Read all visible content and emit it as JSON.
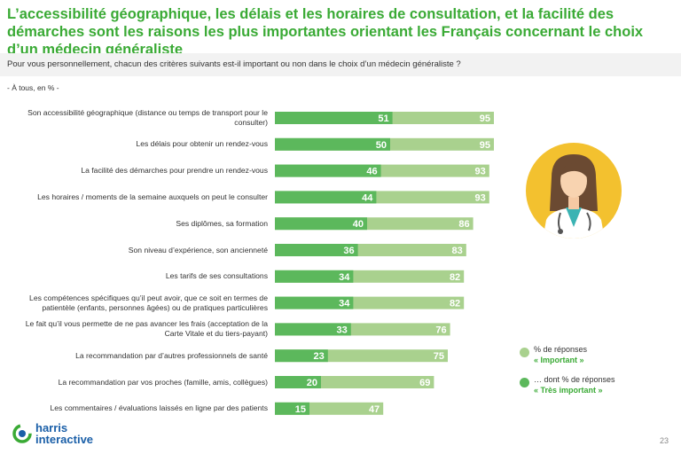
{
  "title": "L’accessibilité géographique, les délais et les horaires de consultation, et la facilité des démarches sont les raisons les plus importantes orientant les Français concernant le choix d’un médecin généraliste",
  "question": "Pour vous personnellement, chacun des critères suivants est-il important ou non dans le choix d’un médecin généraliste ?",
  "base": "- À tous, en % -",
  "legend": {
    "important_line1": "% de réponses",
    "important_line2": "« Important »",
    "tres_line1": "… dont % de réponses",
    "tres_line2": "« Très important »"
  },
  "colors": {
    "important": "#a9d18e",
    "tres_important": "#5cb85c",
    "title": "#3aaa35"
  },
  "logo": {
    "line1": "harris",
    "line2": "interactive"
  },
  "page_number": "23",
  "illustration": "doctor-avatar-icon",
  "chart_data": {
    "type": "bar",
    "orientation": "horizontal",
    "xlim": [
      0,
      100
    ],
    "categories": [
      "Son accessibilité géographique (distance ou temps de transport pour le consulter)",
      "Les délais pour obtenir un rendez-vous",
      "La facilité des démarches pour prendre un rendez-vous",
      "Les horaires / moments de la semaine auxquels on peut le consulter",
      "Ses diplômes, sa formation",
      "Son niveau d’expérience, son ancienneté",
      "Les tarifs de ses consultations",
      "Les compétences spécifiques qu’il peut avoir, que ce soit en termes de patientèle (enfants, personnes âgées) ou de pratiques particulières",
      "Le fait qu’il vous permette de ne pas avancer les frais (acceptation de la Carte Vitale et du tiers-payant)",
      "La recommandation par d’autres professionnels de santé",
      "La recommandation par vos proches (famille, amis, collègues)",
      "Les commentaires / évaluations laissés en ligne par des patients"
    ],
    "series": [
      {
        "name": "% de réponses « Important »",
        "values": [
          95,
          95,
          93,
          93,
          86,
          83,
          82,
          82,
          76,
          75,
          69,
          47
        ]
      },
      {
        "name": "… dont % de réponses « Très important »",
        "values": [
          51,
          50,
          46,
          44,
          40,
          36,
          34,
          34,
          33,
          23,
          20,
          15
        ]
      }
    ]
  }
}
